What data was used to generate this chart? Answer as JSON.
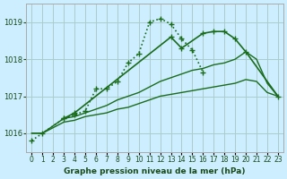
{
  "title": "Graphe pression niveau de la mer (hPa)",
  "background_color": "#cceeff",
  "grid_color": "#aacccc",
  "line_color": "#1a6b1a",
  "x_labels": [
    "0",
    "1",
    "2",
    "3",
    "4",
    "5",
    "6",
    "7",
    "8",
    "9",
    "10",
    "11",
    "12",
    "13",
    "14",
    "15",
    "16",
    "17",
    "18",
    "19",
    "20",
    "21",
    "22",
    "23"
  ],
  "ylim": [
    1015.5,
    1019.5
  ],
  "yticks": [
    1016,
    1017,
    1018,
    1019
  ],
  "series": [
    [
      1015.8,
      1016.0,
      null,
      1016.4,
      1016.5,
      1016.6,
      1017.2,
      1017.2,
      1017.4,
      1017.9,
      1018.15,
      1019.0,
      1019.1,
      1018.95,
      1018.55,
      1018.25,
      1017.65,
      null,
      null,
      null,
      null,
      null,
      null,
      null
    ],
    [
      null,
      null,
      null,
      1016.4,
      1016.55,
      null,
      null,
      null,
      null,
      null,
      null,
      null,
      null,
      1018.6,
      1018.3,
      null,
      1018.7,
      1018.75,
      1018.75,
      1018.55,
      1018.2,
      null,
      null,
      1017.0
    ],
    [
      1016.0,
      1016.0,
      null,
      1016.4,
      1016.45,
      1016.55,
      1016.65,
      1016.75,
      1016.9,
      1017.0,
      1017.1,
      1017.25,
      1017.4,
      1017.5,
      1017.6,
      1017.7,
      1017.75,
      1017.85,
      1017.9,
      1018.0,
      1018.2,
      1018.0,
      1017.35,
      1017.0
    ],
    [
      1016.0,
      1016.0,
      null,
      1016.3,
      1016.35,
      1016.45,
      1016.5,
      1016.55,
      1016.65,
      1016.7,
      1016.8,
      1016.9,
      1017.0,
      1017.05,
      1017.1,
      1017.15,
      1017.2,
      1017.25,
      1017.3,
      1017.35,
      1017.45,
      1017.4,
      1017.1,
      1017.0
    ]
  ],
  "series_styles": [
    {
      "linestyle": "dotted",
      "marker": "+",
      "markersize": 5,
      "linewidth": 1.2
    },
    {
      "linestyle": "solid",
      "marker": "+",
      "markersize": 5,
      "linewidth": 1.2
    },
    {
      "linestyle": "solid",
      "marker": null,
      "markersize": 4,
      "linewidth": 1.0
    },
    {
      "linestyle": "solid",
      "marker": null,
      "markersize": 4,
      "linewidth": 1.0
    }
  ]
}
